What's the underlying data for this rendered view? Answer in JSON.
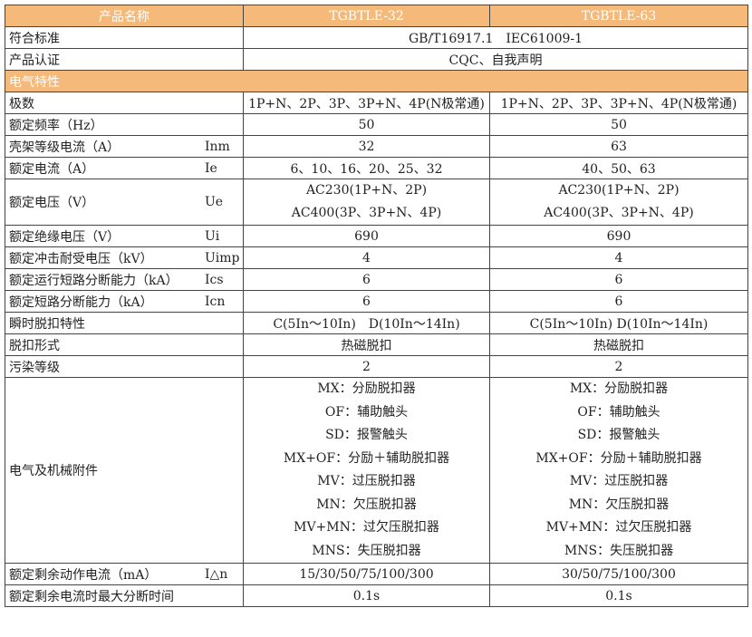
{
  "header": {
    "name": "产品名称",
    "col1": "TGBTLE-32",
    "col2": "TGBTLE-63"
  },
  "standard": {
    "label": "符合标准",
    "value": "GB/T16917.1　IEC61009-1"
  },
  "cert": {
    "label": "产品认证",
    "value": "CQC、自我声明"
  },
  "section": "电气特性",
  "rows": [
    {
      "label": "极数",
      "sym": "",
      "v1": "1P+N、2P、3P、3P+N、4P(N极常通)",
      "v2": "1P+N、2P、3P、3P+N、4P(N极常通)"
    },
    {
      "label": "额定频率（Hz）",
      "sym": "",
      "v1": "50",
      "v2": "50"
    },
    {
      "label": "壳架等级电流（A）",
      "sym": "Inm",
      "v1": "32",
      "v2": "63"
    },
    {
      "label": "额定电流（A）",
      "sym": "Ie",
      "v1": "6、10、16、20、25、32",
      "v2": "40、50、63"
    },
    {
      "label": "额定绝缘电压（V）",
      "sym": "Ui",
      "v1": "690",
      "v2": "690"
    },
    {
      "label": "额定冲击耐受电压（kV）",
      "sym": "Uimp",
      "v1": "4",
      "v2": "4"
    },
    {
      "label": "额定运行短路分断能力（kA）",
      "sym": "Ics",
      "v1": "6",
      "v2": "6"
    },
    {
      "label": "额定短路分断能力（kA）",
      "sym": "Icn",
      "v1": "6",
      "v2": "6"
    },
    {
      "label": "瞬时脱扣特性",
      "sym": "",
      "v1": "C(5In～10In)　D(10In～14In)",
      "v2": "C(5In～10In) D(10In～14In)"
    },
    {
      "label": "脱扣形式",
      "sym": "",
      "v1": "热磁脱扣",
      "v2": "热磁脱扣"
    },
    {
      "label": "污染等级",
      "sym": "",
      "v1": "2",
      "v2": "2"
    }
  ],
  "voltage": {
    "label": "额定电压（V）",
    "sym": "Ue",
    "lines": [
      "AC230(1P+N、2P)",
      "AC400(3P、3P+N、4P)"
    ]
  },
  "accessories": {
    "label": "电气及机械附件",
    "lines": [
      "MX：分励脱扣器",
      "OF：辅助触头",
      "SD：报警触头",
      "MX+OF：分励＋辅助脱扣器",
      "MV：过压脱扣器",
      "MN：欠压脱扣器",
      "MV+MN：过欠压脱扣器",
      "MNS：失压脱扣器"
    ]
  },
  "residual": {
    "label": "额定剩余动作电流（mA）",
    "sym": "I△n",
    "v1": "15/30/50/75/100/300",
    "v2": "30/50/75/100/300"
  },
  "breaktime": {
    "label": "额定剩余电流时最大分断时间",
    "v1": "0.1s",
    "v2": "0.1s"
  },
  "colors": {
    "header_bg": "#f5b97a"
  }
}
